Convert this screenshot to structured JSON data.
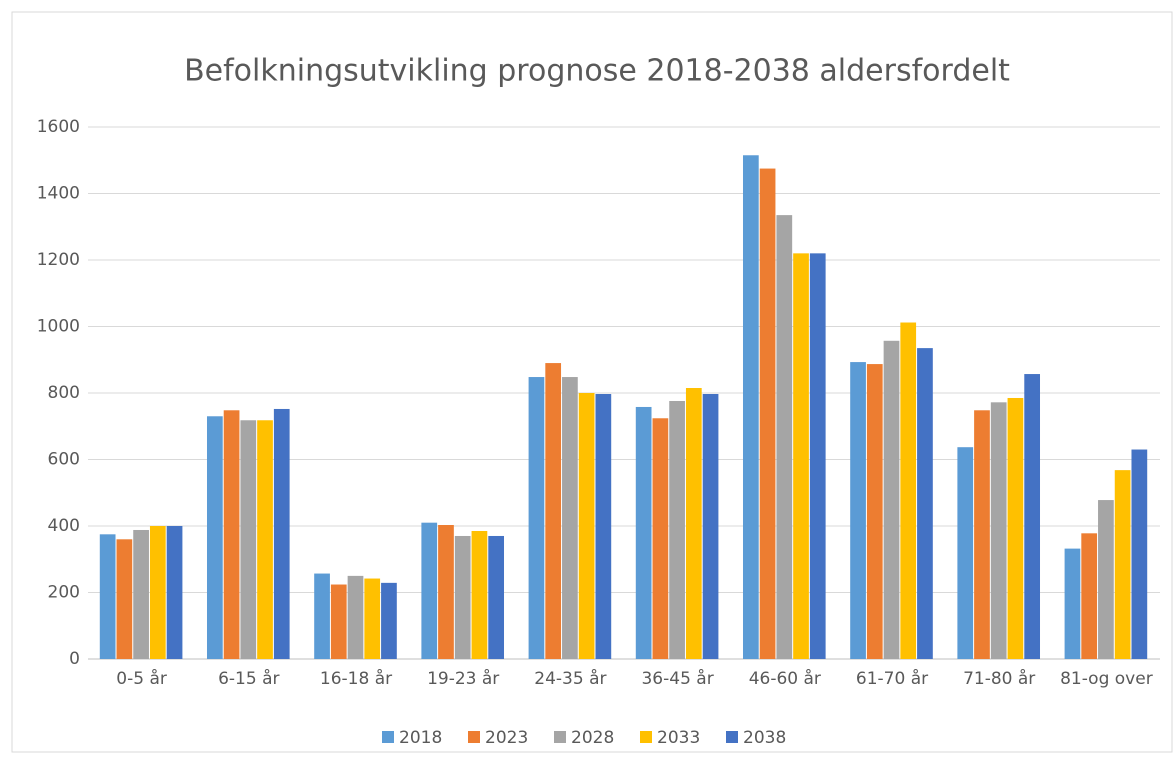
{
  "chart_data": {
    "type": "bar",
    "title": "Befolkningsutvikling prognose 2018-2038 aldersfordelt",
    "categories": [
      "0-5 år",
      "6-15 år",
      "16-18 år",
      "19-23 år",
      "24-35 år",
      "36-45 år",
      "46-60 år",
      "61-70 år",
      "71-80 år",
      "81-og over"
    ],
    "series": [
      {
        "name": "2018",
        "color": "#5b9bd5",
        "values": [
          375,
          730,
          257,
          410,
          848,
          758,
          1515,
          893,
          637,
          332
        ]
      },
      {
        "name": "2023",
        "color": "#ed7d31",
        "values": [
          360,
          748,
          224,
          403,
          890,
          724,
          1475,
          887,
          748,
          378
        ]
      },
      {
        "name": "2028",
        "color": "#a5a5a5",
        "values": [
          388,
          718,
          250,
          370,
          848,
          776,
          1335,
          957,
          772,
          478
        ]
      },
      {
        "name": "2033",
        "color": "#ffc000",
        "values": [
          400,
          718,
          242,
          385,
          800,
          815,
          1220,
          1012,
          785,
          568
        ]
      },
      {
        "name": "2038",
        "color": "#4472c4",
        "values": [
          400,
          752,
          229,
          370,
          797,
          797,
          1220,
          935,
          857,
          630
        ]
      }
    ],
    "ylim": [
      0,
      1600
    ],
    "yticks": [
      0,
      200,
      400,
      600,
      800,
      1000,
      1200,
      1400,
      1600
    ],
    "grid": true,
    "legend": "bottom"
  }
}
